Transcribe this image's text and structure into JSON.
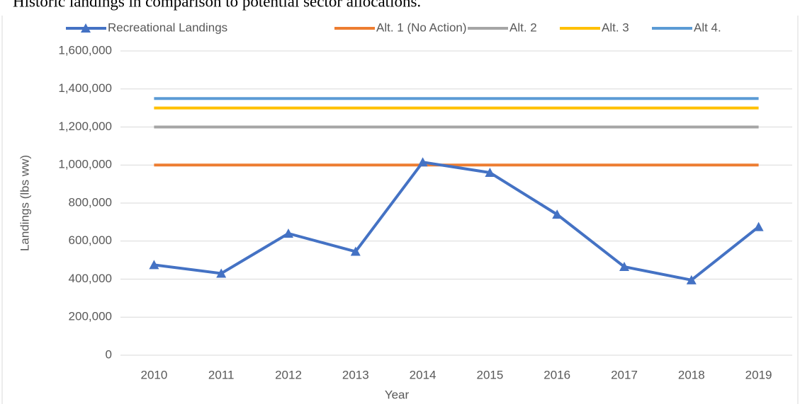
{
  "chart_data": {
    "type": "line",
    "title": "Historic landings in comparison to potential sector allocations.",
    "x_label": "Year",
    "y_label": "Landings (lbs ww)",
    "categories": [
      "2010",
      "2011",
      "2012",
      "2013",
      "2014",
      "2015",
      "2016",
      "2017",
      "2018",
      "2019"
    ],
    "series": [
      {
        "name": "Recreational Landings",
        "color": "#4472c4",
        "marker": "triangle",
        "values": [
          475000,
          430000,
          640000,
          545000,
          1015000,
          960000,
          740000,
          465000,
          395000,
          675000
        ]
      },
      {
        "name": "Alt. 1 (No Action)",
        "color": "#ed7d31",
        "values": [
          1000000,
          1000000,
          1000000,
          1000000,
          1000000,
          1000000,
          1000000,
          1000000,
          1000000,
          1000000
        ]
      },
      {
        "name": "Alt. 2",
        "color": "#a5a5a5",
        "values": [
          1200000,
          1200000,
          1200000,
          1200000,
          1200000,
          1200000,
          1200000,
          1200000,
          1200000,
          1200000
        ]
      },
      {
        "name": "Alt. 3",
        "color": "#ffc000",
        "values": [
          1300000,
          1300000,
          1300000,
          1300000,
          1300000,
          1300000,
          1300000,
          1300000,
          1300000,
          1300000
        ]
      },
      {
        "name": "Alt 4.",
        "color": "#5b9bd5",
        "values": [
          1350000,
          1350000,
          1350000,
          1350000,
          1350000,
          1350000,
          1350000,
          1350000,
          1350000,
          1350000
        ]
      }
    ],
    "ylim": [
      0,
      1600000
    ],
    "yticks": [
      0,
      {
        "value": 200000,
        "label": "200,000"
      },
      {
        "value": 400000,
        "label": "400,000"
      },
      {
        "value": 600000,
        "label": "600,000"
      },
      {
        "value": 800000,
        "label": "800,000"
      },
      {
        "value": 1000000,
        "label": "1,000,000"
      },
      {
        "value": 1200000,
        "label": "1,200,000"
      },
      {
        "value": 1400000,
        "label": "1,400,000"
      },
      {
        "value": 1600000,
        "label": "1,600,000"
      }
    ],
    "grid": true,
    "legend": "top"
  }
}
